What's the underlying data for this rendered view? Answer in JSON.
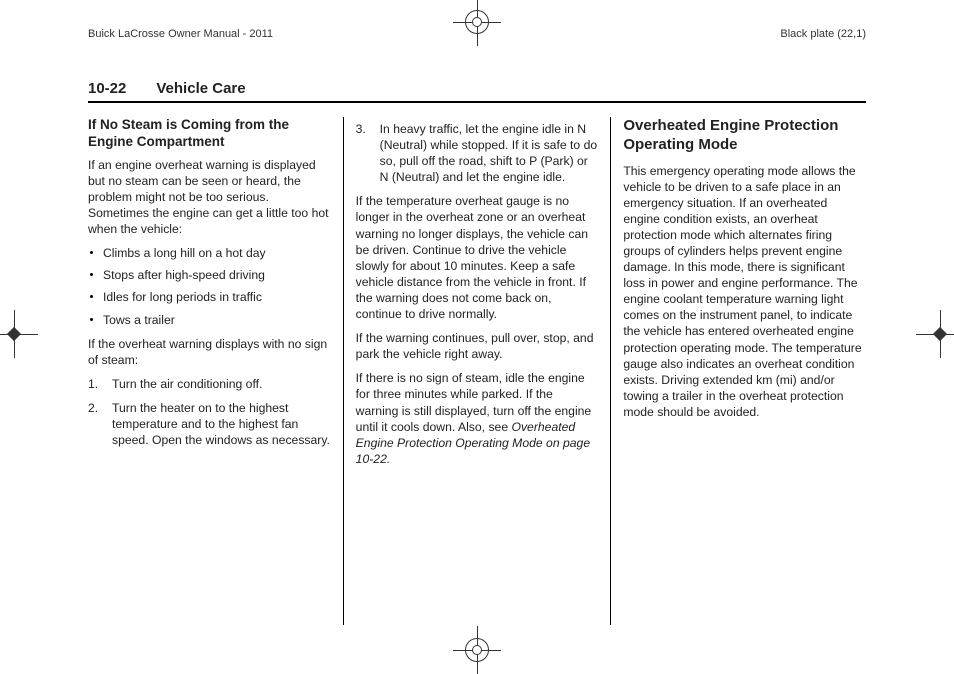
{
  "header": {
    "left": "Buick LaCrosse Owner Manual - 2011",
    "right": "Black plate (22,1)"
  },
  "section": {
    "page_num": "10-22",
    "title": "Vehicle Care"
  },
  "col1": {
    "heading": "If No Steam is Coming from the Engine Compartment",
    "p1": "If an engine overheat warning is displayed but no steam can be seen or heard, the problem might not be too serious. Sometimes the engine can get a little too hot when the vehicle:",
    "bullets": [
      "Climbs a long hill on a hot day",
      "Stops after high-speed driving",
      "Idles for long periods in traffic",
      "Tows a trailer"
    ],
    "p2": "If the overheat warning displays with no sign of steam:",
    "steps": [
      "Turn the air conditioning off.",
      "Turn the heater on to the highest temperature and to the highest fan speed. Open the windows as necessary."
    ]
  },
  "col2": {
    "step3": "In heavy traffic, let the engine idle in N (Neutral) while stopped. If it is safe to do so, pull off the road, shift to P (Park) or N (Neutral) and let the engine idle.",
    "p1": "If the temperature overheat gauge is no longer in the overheat zone or an overheat warning no longer displays, the vehicle can be driven. Continue to drive the vehicle slowly for about 10 minutes. Keep a safe vehicle distance from the vehicle in front. If the warning does not come back on, continue to drive normally.",
    "p2": "If the warning continues, pull over, stop, and park the vehicle right away.",
    "p3a": "If there is no sign of steam, idle the engine for three minutes while parked. If the warning is still displayed, turn off the engine until it cools down. Also, see ",
    "p3_ital": "Overheated Engine Protection Operating Mode on page 10-22."
  },
  "col3": {
    "heading": "Overheated Engine Protection Operating Mode",
    "p1": "This emergency operating mode allows the vehicle to be driven to a safe place in an emergency situation. If an overheated engine condition exists, an overheat protection mode which alternates firing groups of cylinders helps prevent engine damage. In this mode, there is significant loss in power and engine performance. The engine coolant temperature warning light comes on the instrument panel, to indicate the vehicle has entered overheated engine protection operating mode. The temperature gauge also indicates an overheat condition exists. Driving extended km (mi) and/or towing a trailer in the overheat protection mode should be avoided."
  }
}
